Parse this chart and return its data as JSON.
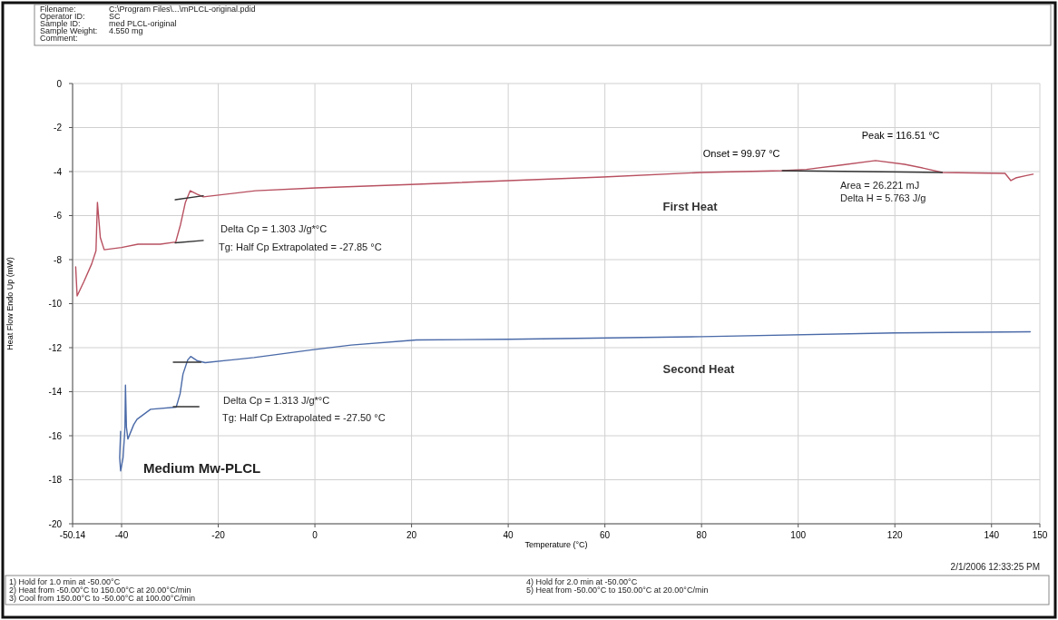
{
  "chart_data": {
    "type": "line",
    "xlabel": "Temperature (°C)",
    "ylabel": "Heat Flow Endo Up (mW)",
    "xlim": [
      -50.14,
      150
    ],
    "xticks": [
      -50.14,
      -40,
      -20,
      0,
      20,
      40,
      60,
      80,
      100,
      120,
      140,
      150
    ],
    "ylim": [
      -20,
      0
    ],
    "yticks": [
      -20,
      -18,
      -16,
      -14,
      -12,
      -10,
      -8,
      -6,
      -4,
      -2,
      0
    ],
    "grid": true,
    "marker": "none",
    "line_style": "solid",
    "series": [
      {
        "name": "First Heat",
        "color": "#b85060",
        "x": [
          -49.5,
          -49.2,
          -47.8,
          -46.2,
          -45.3,
          -45.0,
          -44.4,
          -43.6,
          -40,
          -36.6,
          -32,
          -28.8,
          -27.8,
          -26.8,
          -25.8,
          -24.4,
          -23.1,
          -21.1,
          -12.3,
          0.2,
          21,
          40,
          59.6,
          80,
          96.7,
          101.7,
          109,
          116,
          122,
          126,
          129.8,
          136,
          142.8,
          144,
          145,
          147,
          148.6
        ],
        "values": [
          -8.33,
          -9.65,
          -9.0,
          -8.2,
          -7.6,
          -5.4,
          -7.0,
          -7.55,
          -7.45,
          -7.3,
          -7.3,
          -7.2,
          -6.4,
          -5.4,
          -4.87,
          -5.03,
          -5.15,
          -5.1,
          -4.87,
          -4.74,
          -4.58,
          -4.41,
          -4.25,
          -4.04,
          -3.96,
          -3.9,
          -3.7,
          -3.5,
          -3.67,
          -3.85,
          -4.04,
          -4.06,
          -4.08,
          -4.41,
          -4.29,
          -4.19,
          -4.12
        ]
      },
      {
        "name": "Second Heat",
        "color": "#4a6aa8",
        "x": [
          -40.2,
          -40.4,
          -40.2,
          -39.7,
          -39.4,
          -39.3,
          -39.2,
          -39.0,
          -38.7,
          -37.5,
          -36.8,
          -34,
          -28.7,
          -27.9,
          -27.3,
          -26.3,
          -25.7,
          -24.3,
          -22.7,
          -12.6,
          -0.6,
          7.5,
          21,
          40,
          80,
          120,
          148
        ],
        "values": [
          -15.8,
          -17.0,
          -17.6,
          -17.0,
          -16.0,
          -15.6,
          -13.7,
          -15.6,
          -16.15,
          -15.5,
          -15.25,
          -14.8,
          -14.7,
          -14.1,
          -13.2,
          -12.55,
          -12.4,
          -12.6,
          -12.68,
          -12.45,
          -12.1,
          -11.88,
          -11.65,
          -11.62,
          -11.5,
          -11.33,
          -11.28
        ]
      },
      {
        "color": "#333333",
        "x": [
          -28.9,
          -23.1
        ],
        "values": [
          -7.24,
          -7.13
        ]
      },
      {
        "color": "#333333",
        "x": [
          -28.9,
          -23.1
        ],
        "values": [
          -5.28,
          -5.1
        ]
      },
      {
        "color": "#333333",
        "x": [
          -29.3,
          -23.6
        ],
        "values": [
          -12.66,
          -12.66
        ]
      },
      {
        "color": "#333333",
        "x": [
          -29.3,
          -24.0
        ],
        "values": [
          -14.68,
          -14.68
        ]
      },
      {
        "color": "#333333",
        "x": [
          96.7,
          129.8
        ],
        "values": [
          -3.96,
          -4.04
        ]
      }
    ],
    "annotations": [
      {
        "text": "Onset = 99.97 °C",
        "x": 99.97,
        "y": -3.9
      },
      {
        "text": "Peak = 116.51 °C",
        "x": 116.51,
        "y": -3.5
      },
      "Filename:",
      "C:\\Program Files\\...\\mPLCL-original.pdid",
      "Operator ID:",
      "SC",
      "Sample ID:",
      "med PLCL-original",
      "Sample Weight:",
      "4.550 mg",
      "Comment:",
      "Delta Cp = 1.303 J/g*°C",
      "Tg: Half Cp Extrapolated = -27.85 °C",
      "Area = 26.221 mJ",
      "Delta H = 5.763 J/g",
      "Delta Cp = 1.313 J/g*°C",
      "Tg: Half Cp Extrapolated = -27.50 °C",
      "Medium Mw-PLCL",
      "2/1/2006 12:33:25 PM",
      "1) Hold for 1.0 min at -50.00°C",
      "2) Heat from -50.00°C to 150.00°C at 20.00°C/min",
      "3) Cool from 150.00°C to -50.00°C at 100.00°C/min",
      "4) Hold for 2.0 min at -50.00°C",
      "5) Heat from -50.00°C to 150.00°C at 20.00°C/min"
    ]
  }
}
